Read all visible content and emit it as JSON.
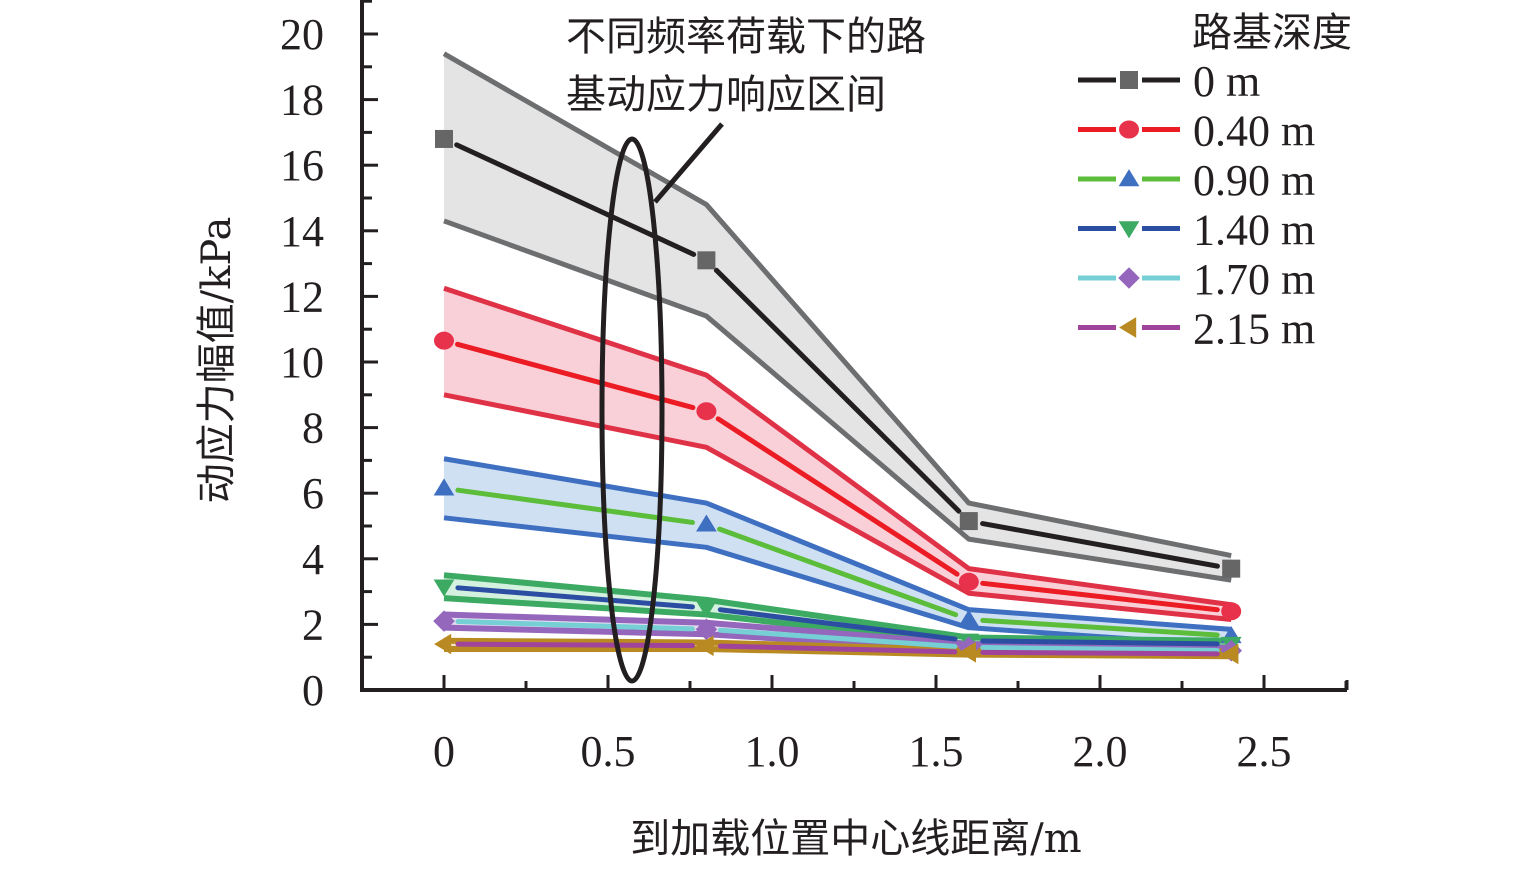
{
  "chart_data": {
    "type": "line",
    "title": "",
    "xlabel": "到加载位置中心线距离/m",
    "ylabel": "动应力幅值/kPa",
    "xlim": [
      -0.25,
      2.75
    ],
    "ylim": [
      0,
      21
    ],
    "x_ticks": [
      0,
      0.5,
      1.0,
      1.5,
      2.0,
      2.5
    ],
    "x_tick_labels": [
      "0",
      "0.5",
      "1.0",
      "1.5",
      "2.0",
      "2.5"
    ],
    "y_ticks": [
      0,
      2,
      4,
      6,
      8,
      10,
      12,
      14,
      16,
      18,
      20
    ],
    "y_tick_labels": [
      "0",
      "2",
      "4",
      "6",
      "8",
      "10",
      "12",
      "14",
      "16",
      "18",
      "20"
    ],
    "grid": false,
    "legend": {
      "title": "路基深度",
      "position": "top-right"
    },
    "x": [
      0,
      0.8,
      1.6,
      2.4
    ],
    "series": [
      {
        "name": "0 m",
        "values": [
          16.8,
          13.1,
          5.15,
          3.7
        ],
        "upper": [
          19.4,
          14.8,
          5.7,
          4.1
        ],
        "lower": [
          14.3,
          11.4,
          4.6,
          3.35
        ],
        "line_color": "#231f20",
        "marker": "square",
        "marker_color": "#666666",
        "band_edge_color": "#6d6e70",
        "band_fill": "#e4e4e4"
      },
      {
        "name": "0.40 m",
        "values": [
          10.65,
          8.5,
          3.3,
          2.4
        ],
        "upper": [
          12.25,
          9.6,
          3.7,
          2.6
        ],
        "lower": [
          9.0,
          7.4,
          2.95,
          2.15
        ],
        "line_color": "#ec1c24",
        "marker": "circle",
        "marker_color": "#e8314a",
        "band_edge_color": "#e03246",
        "band_fill": "#f9d0d8"
      },
      {
        "name": "0.90 m",
        "values": [
          6.15,
          5.05,
          2.15,
          1.65
        ],
        "upper": [
          7.05,
          5.7,
          2.45,
          1.85
        ],
        "lower": [
          5.25,
          4.35,
          1.9,
          1.35
        ],
        "line_color": "#5cbd3a",
        "marker": "triangle-up",
        "marker_color": "#3e6fc1",
        "band_edge_color": "#3e6fc1",
        "band_fill": "#cfe0f2"
      },
      {
        "name": "1.40 m",
        "values": [
          3.15,
          2.5,
          1.5,
          1.4
        ],
        "upper": [
          3.5,
          2.75,
          1.6,
          1.5
        ],
        "lower": [
          2.8,
          2.3,
          1.4,
          1.3
        ],
        "line_color": "#2b4ea2",
        "marker": "triangle-down",
        "marker_color": "#3daa63",
        "band_edge_color": "#3daa63",
        "band_fill": "#d4f0de"
      },
      {
        "name": "1.70 m",
        "values": [
          2.1,
          1.85,
          1.3,
          1.2
        ],
        "upper": [
          2.3,
          2.05,
          1.4,
          1.28
        ],
        "lower": [
          1.9,
          1.7,
          1.22,
          1.12
        ],
        "line_color": "#75cfd4",
        "marker": "diamond",
        "marker_color": "#9467bd",
        "band_edge_color": "#9467bd",
        "band_fill": "#e4dcf0"
      },
      {
        "name": "2.15 m",
        "values": [
          1.4,
          1.35,
          1.15,
          1.1
        ],
        "upper": [
          1.5,
          1.45,
          1.22,
          1.17
        ],
        "lower": [
          1.25,
          1.25,
          1.08,
          1.03
        ],
        "line_color": "#a0439b",
        "marker": "triangle-left",
        "marker_color": "#b88a21",
        "band_edge_color": "#b88a21",
        "band_fill": "#f3e6c5"
      }
    ],
    "annotations": [
      {
        "text_lines": [
          "不同频率荷载下的路",
          "基动应力响应区间"
        ],
        "target": "ellipse around x≈0.57"
      }
    ]
  }
}
